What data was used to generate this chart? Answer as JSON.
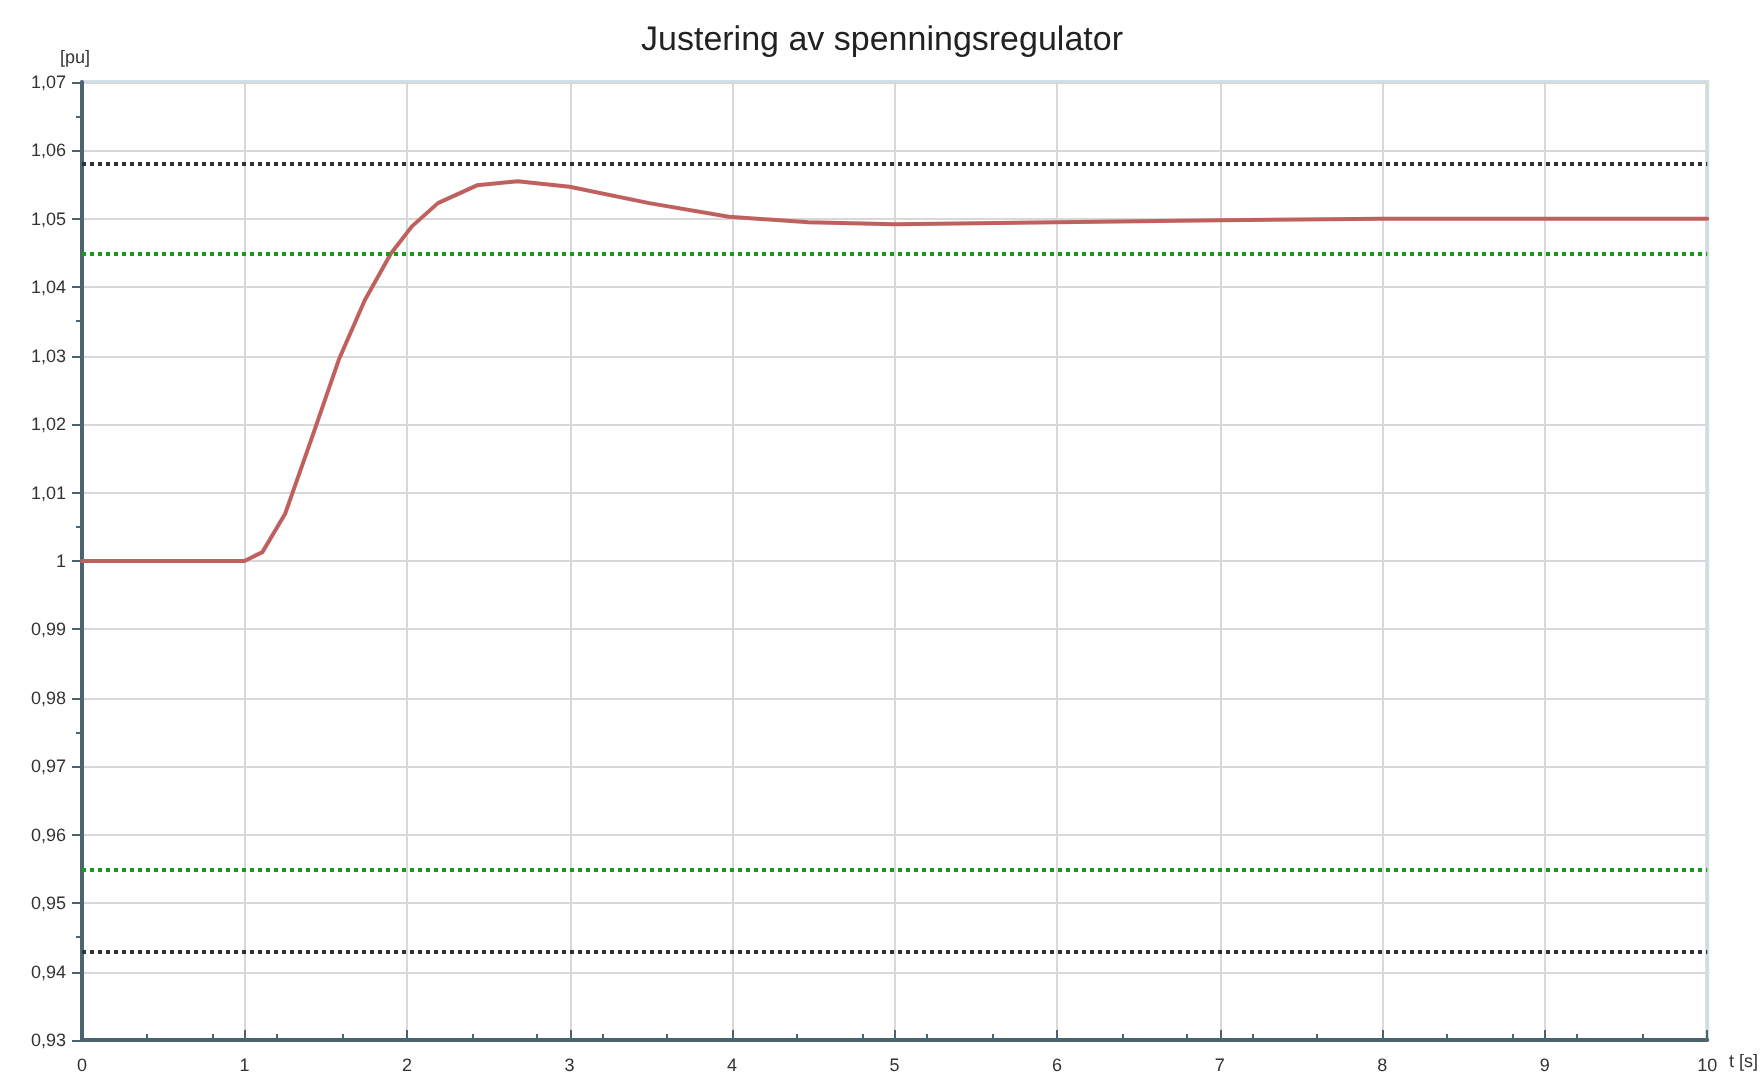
{
  "chart_data": {
    "type": "line",
    "title": "Justering av spenningsregulator",
    "xlabel": "t [s]",
    "ylabel": "[pu]",
    "x": [
      0,
      1,
      1.11,
      1.25,
      1.41,
      1.58,
      1.74,
      1.9,
      2.03,
      2.19,
      2.43,
      2.68,
      3,
      3.49,
      3.98,
      4.47,
      5,
      6,
      7,
      8,
      9,
      10
    ],
    "series": [
      {
        "color": "#c0605e",
        "values": [
          1,
          1,
          1.0013,
          1.0069,
          1.0177,
          1.0294,
          1.0381,
          1.0449,
          1.0489,
          1.0523,
          1.0549,
          1.0555,
          1.0547,
          1.0523,
          1.0503,
          1.0495,
          1.0492,
          1.0495,
          1.0498,
          1.05,
          1.05,
          1.05
        ]
      }
    ],
    "xlim": [
      0,
      10
    ],
    "xticks": [
      0,
      1,
      2,
      3,
      4,
      5,
      6,
      7,
      8,
      9,
      10
    ],
    "ylim": [
      0.93,
      1.07
    ],
    "yticks": [
      {
        "value": 0.93,
        "label": "0,93"
      },
      {
        "value": 0.94,
        "label": "0,94"
      },
      {
        "value": 0.95,
        "label": "0,95"
      },
      {
        "value": 0.96,
        "label": "0,96"
      },
      {
        "value": 0.97,
        "label": "0,97"
      },
      {
        "value": 0.98,
        "label": "0,98"
      },
      {
        "value": 0.99,
        "label": "0,99"
      },
      {
        "value": 1,
        "label": "1"
      },
      {
        "value": 1.01,
        "label": "1,01"
      },
      {
        "value": 1.02,
        "label": "1,02"
      },
      {
        "value": 1.03,
        "label": "1,03"
      },
      {
        "value": 1.04,
        "label": "1,04"
      },
      {
        "value": 1.05,
        "label": "1,05"
      },
      {
        "value": 1.06,
        "label": "1,06"
      },
      {
        "value": 1.07,
        "label": "1,07"
      }
    ],
    "ref_lines": [
      {
        "axis": "y",
        "value": 1.058,
        "color": "#333333",
        "line_style": "dotted"
      },
      {
        "axis": "y",
        "value": 1.045,
        "color": "#1a9a1a",
        "line_style": "dotted"
      },
      {
        "axis": "y",
        "value": 0.955,
        "color": "#1a9a1a",
        "line_style": "dotted"
      },
      {
        "axis": "y",
        "value": 0.943,
        "color": "#333333",
        "line_style": "dotted"
      }
    ],
    "grid": true,
    "marker": "none",
    "line_style": "solid"
  }
}
